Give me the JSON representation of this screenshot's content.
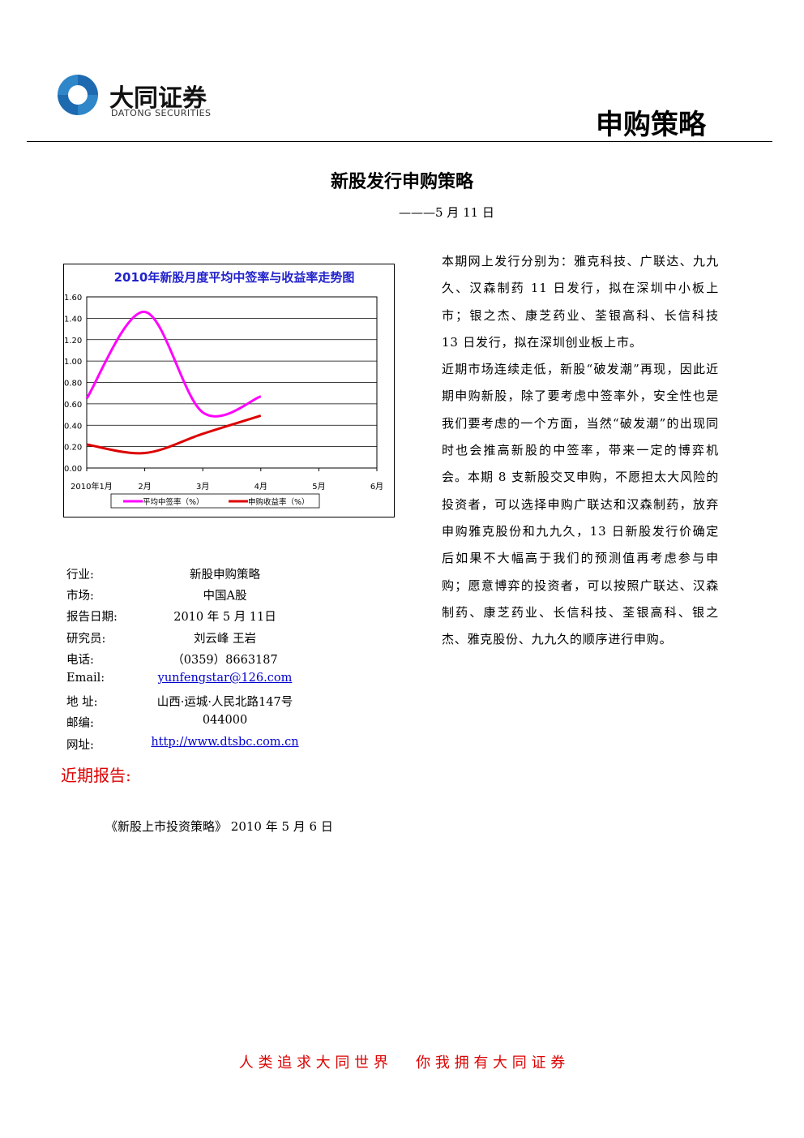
{
  "header": {
    "logo_cn": "大同证券",
    "logo_en": "DATONG SECURITIES",
    "category": "申购策略"
  },
  "title": "新股发行申购策略",
  "date_line": "———5 月 11 日",
  "chart_data": {
    "type": "line",
    "title": "2010年新股月度平均中签率与收益率走势图",
    "categories": [
      "2010年1月",
      "2月",
      "3月",
      "4月",
      "5月",
      "6月"
    ],
    "series": [
      {
        "name": "平均中签率（%）",
        "color": "#ff00ff",
        "values": [
          0.65,
          1.46,
          0.52,
          0.67,
          null,
          null
        ]
      },
      {
        "name": "申购收益率（%）",
        "color": "#dd0000",
        "values": [
          0.22,
          0.14,
          0.32,
          0.49,
          null,
          null
        ]
      }
    ],
    "ylim": [
      0,
      1.6
    ],
    "yticks": [
      {
        "value": 0,
        "label": "0.00"
      },
      {
        "value": 0.2,
        "label": "0.20"
      },
      {
        "value": 0.4,
        "label": "0.40"
      },
      {
        "value": 0.6,
        "label": "0.60"
      },
      {
        "value": 0.8,
        "label": "0.80"
      },
      {
        "value": 1,
        "label": "1.00"
      },
      {
        "value": 1.2,
        "label": "1.20"
      },
      {
        "value": 1.4,
        "label": "1.40"
      },
      {
        "value": 1.6,
        "label": "1.60"
      }
    ],
    "grid": true
  },
  "info": {
    "rows": [
      [
        "行业:",
        "新股申购策略"
      ],
      [
        "市场:",
        "中国A股"
      ],
      [
        "报告日期:",
        "2010  年  5  月  11日"
      ],
      [
        "研究员:",
        "刘云峰      王岩"
      ],
      [
        "电话:",
        "（0359）8663187"
      ],
      [
        "Email:",
        "yunfengstar@126.com"
      ],
      [
        "地  址:",
        "山西·运城·人民北路147号"
      ],
      [
        "邮编:",
        "044000"
      ],
      [
        "网址:",
        "http://www.dtsbc.com.cn"
      ]
    ]
  },
  "recent_reports": {
    "heading": "近期报告:",
    "items": [
      "《新股上市投资策略》 2010 年 5 月 6 日"
    ]
  },
  "body": [
    "本期网上发行分别为：雅克科技、广联达、九九久、汉森制药 11 日发行，拟在深圳中小板上市；银之杰、康芝药业、荃银高科、长信科技 13 日发行，拟在深圳创业板上市。",
    "近期市场连续走低，新股“破发潮”再现，因此近期申购新股，除了要考虑中签率外，安全性也是我们要考虑的一个方面，当然“破发潮”的出现同时也会推高新股的中签率，带来一定的博弈机会。本期 8 支新股交叉申购，不愿担太大风险的投资者，可以选择申购广联达和汉森制药，放弃申购雅克股份和九九久，13 日新股发行价确定后如果不大幅高于我们的预测值再考虑参与申购；愿意博弈的投资者，可以按照广联达、汉森制药、康芝药业、长信科技、荃银高科、银之杰、雅克股份、九九久的顺序进行申购。"
  ],
  "footer": "人 类 追 求 大 同 世 界      你 我 拥 有 大 同 证 券"
}
